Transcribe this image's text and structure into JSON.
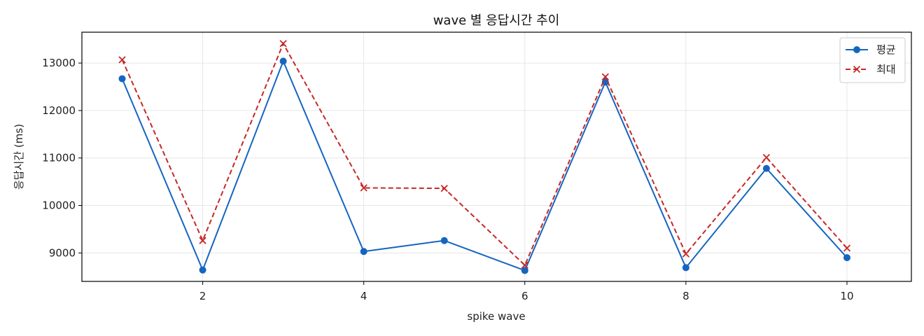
{
  "chart_data": {
    "type": "line",
    "title": "wave 별 응답시간 추이",
    "xlabel": "spike wave",
    "ylabel": "응답시간 (ms)",
    "x": [
      1,
      2,
      3,
      4,
      5,
      6,
      7,
      8,
      9,
      10
    ],
    "xlim": [
      0.5,
      10.8
    ],
    "ylim": [
      8400,
      13650
    ],
    "xticks": [
      2,
      4,
      6,
      8,
      10
    ],
    "yticks": [
      9000,
      10000,
      11000,
      12000,
      13000
    ],
    "grid": true,
    "legend_position": "top-right",
    "series": [
      {
        "name": "평균",
        "values": [
          12670,
          8640,
          13040,
          9030,
          9260,
          8630,
          12600,
          8690,
          10780,
          8900
        ],
        "color": "#1565c0",
        "line_style": "solid",
        "marker": "circle"
      },
      {
        "name": "최대",
        "values": [
          13070,
          9260,
          13410,
          10370,
          10360,
          8740,
          12710,
          8980,
          11010,
          9100
        ],
        "color": "#c62828",
        "line_style": "dashed",
        "marker": "x"
      }
    ]
  }
}
